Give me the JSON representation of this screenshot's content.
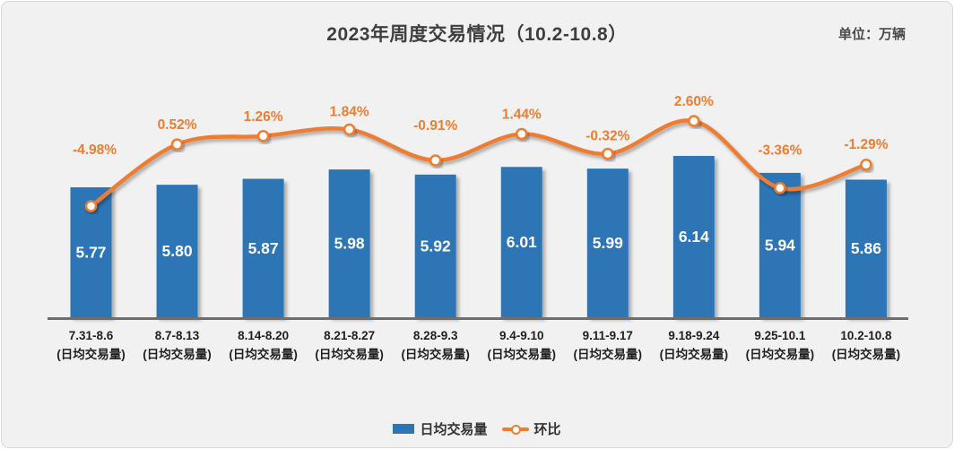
{
  "header": {
    "title": "2023年周度交易情况（10.2-10.8）",
    "unit_label": "单位：万辆"
  },
  "legend": {
    "bar_label": "日均交易量",
    "line_label": "环比"
  },
  "colors": {
    "bar": "#2E75B6",
    "line": "#ED7D31",
    "marker_fill": "#FFFFFF",
    "background": "#F1F1F1",
    "axis": "#6E6E6E",
    "title_text": "#3F3F3F",
    "bar_value_text": "#FFFFFF",
    "pct_label_text": "#ED7D31",
    "axis_label_text": "#1F1F1F"
  },
  "chart_data": {
    "type": "bar",
    "subtype": "bar-line-combo",
    "title": "2023年周度交易情况（10.2-10.8）",
    "unit": "万辆",
    "categories": [
      "7.31-8.6",
      "8.7-8.13",
      "8.14-8.20",
      "8.21-8.27",
      "8.28-9.3",
      "9.4-9.10",
      "9.11-9.17",
      "9.18-9.24",
      "9.25-10.1",
      "10.2-10.8"
    ],
    "category_sublabel": "(日均交易量)",
    "series": [
      {
        "name": "日均交易量",
        "type": "bar",
        "values": [
          5.77,
          5.8,
          5.87,
          5.98,
          5.92,
          6.01,
          5.99,
          6.14,
          5.94,
          5.86
        ],
        "value_labels": [
          "5.77",
          "5.80",
          "5.87",
          "5.98",
          "5.92",
          "6.01",
          "5.99",
          "6.14",
          "5.94",
          "5.86"
        ]
      },
      {
        "name": "环比",
        "type": "line",
        "values_pct": [
          -4.98,
          0.52,
          1.26,
          1.84,
          -0.91,
          1.44,
          -0.32,
          2.6,
          -3.36,
          -1.29
        ],
        "value_labels": [
          "-4.98%",
          "0.52%",
          "1.26%",
          "1.84%",
          "-0.91%",
          "1.44%",
          "-0.32%",
          "2.60%",
          "-3.36%",
          "-1.29%"
        ]
      }
    ],
    "value_axis_visible": false,
    "grid": false,
    "data_labels": true,
    "legend_position": "bottom"
  }
}
